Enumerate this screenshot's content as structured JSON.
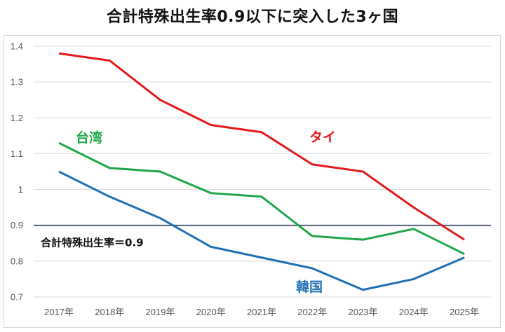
{
  "chart_data": {
    "type": "line",
    "title": "合計特殊出生率0.9以下に突入した3ヶ国",
    "xlabel": "",
    "ylabel": "",
    "categories": [
      "2017年",
      "2018年",
      "2019年",
      "2020年",
      "2021年",
      "2022年",
      "2023年",
      "2024年",
      "2025年"
    ],
    "ylim": [
      0.7,
      1.4
    ],
    "yticks": [
      0.7,
      0.8,
      0.9,
      1.0,
      1.1,
      1.2,
      1.3,
      1.4
    ],
    "ytick_labels": [
      "0.7",
      "0.8",
      "0.9",
      "1",
      "1.1",
      "1.2",
      "1.3",
      "1.4"
    ],
    "grid": true,
    "legend": "none (inline labels)",
    "series": [
      {
        "name": "タイ",
        "color": "#e31a1c",
        "values": [
          1.38,
          1.36,
          1.25,
          1.18,
          1.16,
          1.07,
          1.05,
          0.95,
          0.86
        ]
      },
      {
        "name": "台湾",
        "color": "#1fa64a",
        "values": [
          1.13,
          1.06,
          1.05,
          0.99,
          0.98,
          0.87,
          0.86,
          0.89,
          0.82
        ]
      },
      {
        "name": "韓国",
        "color": "#1f6fb4",
        "values": [
          1.05,
          0.98,
          0.92,
          0.84,
          0.81,
          0.78,
          0.72,
          0.75,
          0.81
        ]
      }
    ],
    "reference_line": {
      "value": 0.9,
      "label": "合計特殊出生率＝0.9",
      "color": "#2f3f5c"
    },
    "annotations": [
      {
        "text": "タイ",
        "series": "タイ"
      },
      {
        "text": "台湾",
        "series": "台湾"
      },
      {
        "text": "韓国",
        "series": "韓国"
      }
    ]
  }
}
